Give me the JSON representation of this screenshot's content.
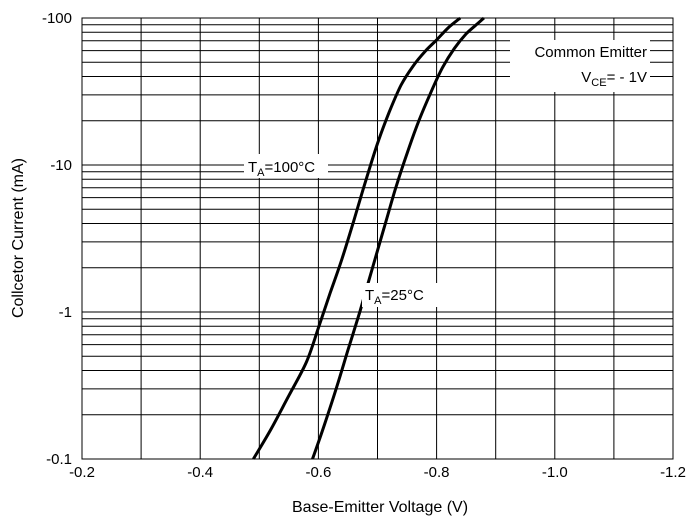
{
  "chart_data": {
    "type": "line",
    "title": "",
    "xlabel": "Base-Emitter Voltage (V)",
    "ylabel": "Collcetor Current (mA)",
    "x_scale": "linear",
    "y_scale": "log",
    "xlim": [
      -0.2,
      -1.2
    ],
    "ylim": [
      -0.1,
      -100
    ],
    "grid": true,
    "x_ticks": [
      -0.2,
      -0.4,
      -0.6,
      -0.8,
      -1.0,
      -1.2
    ],
    "x_tick_labels": [
      "-0.2",
      "-0.4",
      "-0.6",
      "-0.8",
      "-1.0",
      "-1.2"
    ],
    "y_ticks": [
      -0.1,
      -1,
      -10,
      -100
    ],
    "y_tick_labels": [
      "-0.1",
      "-1",
      "-10",
      "-100"
    ],
    "series": [
      {
        "name": "TA=100°C",
        "x": [
          -0.49,
          -0.52,
          -0.55,
          -0.58,
          -0.6,
          -0.62,
          -0.64,
          -0.66,
          -0.68,
          -0.7,
          -0.72,
          -0.74,
          -0.76,
          -0.78,
          -0.8,
          -0.82,
          -0.84
        ],
        "y": [
          -0.1,
          -0.16,
          -0.27,
          -0.46,
          -0.78,
          -1.35,
          -2.3,
          -4.2,
          -7.8,
          -14,
          -23,
          -35,
          -47,
          -59,
          -71,
          -86,
          -100
        ]
      },
      {
        "name": "TA=25°C",
        "x": [
          -0.59,
          -0.61,
          -0.63,
          -0.65,
          -0.67,
          -0.69,
          -0.71,
          -0.73,
          -0.75,
          -0.77,
          -0.79,
          -0.81,
          -0.83,
          -0.85,
          -0.87,
          -0.88
        ],
        "y": [
          -0.1,
          -0.17,
          -0.3,
          -0.55,
          -1.0,
          -1.9,
          -3.6,
          -6.8,
          -12,
          -20,
          -31,
          -46,
          -62,
          -78,
          -92,
          -100
        ]
      }
    ],
    "annotations": {
      "curve_100": {
        "prefix": "T",
        "sub": "A",
        "suffix": "=100°C"
      },
      "curve_25": {
        "prefix": "T",
        "sub": "A",
        "suffix": "=25°C"
      },
      "condition_line1": "Common Emitter",
      "condition_line2": {
        "prefix": "V",
        "sub": "CE",
        "suffix": "= - 1V"
      }
    },
    "colors": {
      "curve": "#000000",
      "grid": "#000000",
      "background": "#ffffff"
    }
  }
}
